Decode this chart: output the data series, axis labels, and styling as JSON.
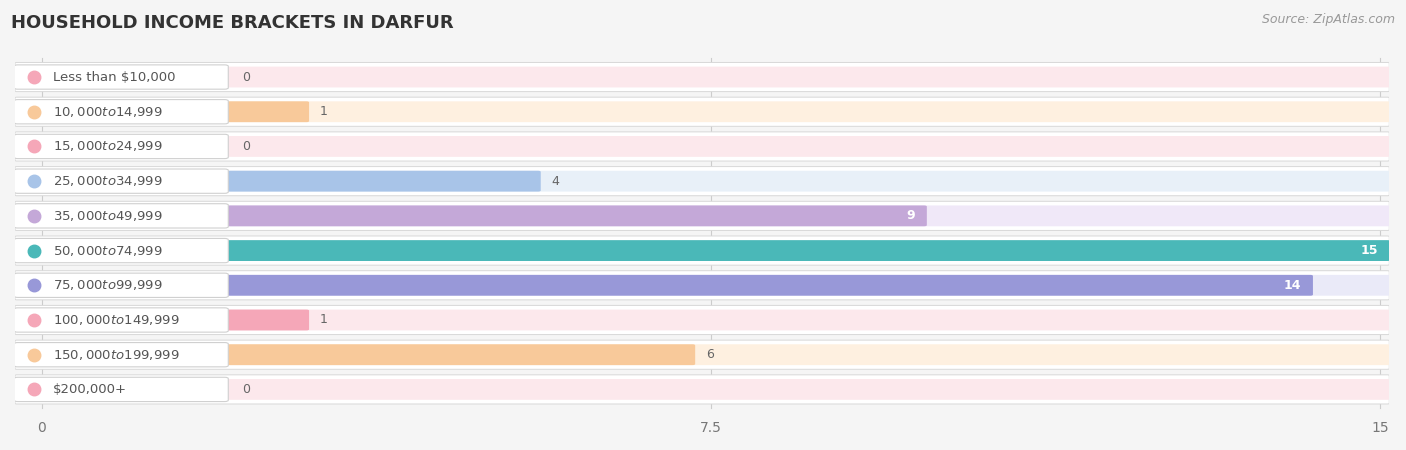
{
  "title": "HOUSEHOLD INCOME BRACKETS IN DARFUR",
  "source": "Source: ZipAtlas.com",
  "categories": [
    "Less than $10,000",
    "$10,000 to $14,999",
    "$15,000 to $24,999",
    "$25,000 to $34,999",
    "$35,000 to $49,999",
    "$50,000 to $74,999",
    "$75,000 to $99,999",
    "$100,000 to $149,999",
    "$150,000 to $199,999",
    "$200,000+"
  ],
  "values": [
    0,
    1,
    0,
    4,
    9,
    15,
    14,
    1,
    6,
    0
  ],
  "bar_colors": [
    "#f5a7b8",
    "#f8c99a",
    "#f5a7b8",
    "#a8c4e8",
    "#c4a8d8",
    "#4ab8b8",
    "#9898d8",
    "#f5a7b8",
    "#f8c99a",
    "#f5a7b8"
  ],
  "bg_colors": [
    "#fce8ec",
    "#fef0e0",
    "#fce8ec",
    "#e8f0f8",
    "#f0e8f8",
    "#e0f4f4",
    "#eaeaf8",
    "#fce8ec",
    "#fef0e0",
    "#fce8ec"
  ],
  "row_bg": "#f0f0f0",
  "xlim": [
    0,
    15
  ],
  "xticks": [
    0,
    7.5,
    15
  ],
  "background_color": "#f5f5f5",
  "grid_color": "#cccccc",
  "title_fontsize": 13,
  "source_fontsize": 9,
  "label_fontsize": 9.5,
  "value_fontsize": 9
}
